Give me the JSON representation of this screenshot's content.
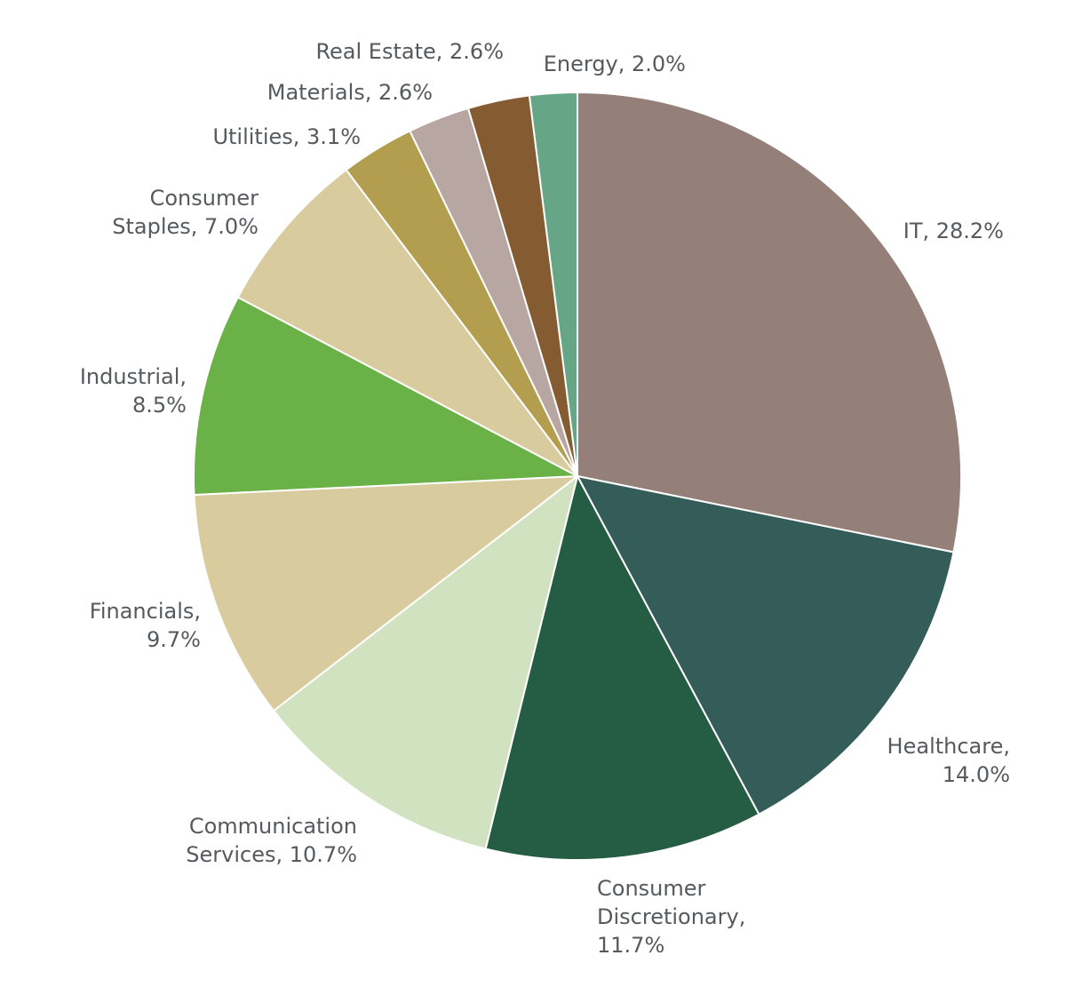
{
  "chart_data": {
    "type": "pie",
    "title": "",
    "start_angle_deg": 0,
    "direction": "clockwise",
    "slices": [
      {
        "label": "IT",
        "value": 28.2,
        "label_text": "IT, 28.2%",
        "color": "#948079"
      },
      {
        "label": "Healthcare",
        "value": 14.0,
        "label_text": "Healthcare,\n14.0%",
        "color": "#345c59"
      },
      {
        "label": "Consumer Discretionary",
        "value": 11.7,
        "label_text": "Consumer\nDiscretionary,\n11.7%",
        "color": "#245d43"
      },
      {
        "label": "Communication Services",
        "value": 10.7,
        "label_text": "Communication\nServices, 10.7%",
        "color": "#d0e2c0"
      },
      {
        "label": "Financials",
        "value": 9.7,
        "label_text": "Financials,\n9.7%",
        "color": "#d8cc9f"
      },
      {
        "label": "Industrial",
        "value": 8.5,
        "label_text": "Industrial,\n8.5%",
        "color": "#6ab147"
      },
      {
        "label": "Consumer Staples",
        "value": 7.0,
        "label_text": "Consumer\nStaples, 7.0%",
        "color": "#d8cc9f"
      },
      {
        "label": "Utilities",
        "value": 3.1,
        "label_text": "Utilities, 3.1%",
        "color": "#b29e4e"
      },
      {
        "label": "Materials",
        "value": 2.6,
        "label_text": "Materials, 2.6%",
        "color": "#b7a6a1"
      },
      {
        "label": "Real Estate",
        "value": 2.6,
        "label_text": "Real Estate, 2.6%",
        "color": "#855b31"
      },
      {
        "label": "Energy",
        "value": 2.0,
        "label_text": "Energy, 2.0%",
        "color": "#66a686"
      }
    ]
  }
}
